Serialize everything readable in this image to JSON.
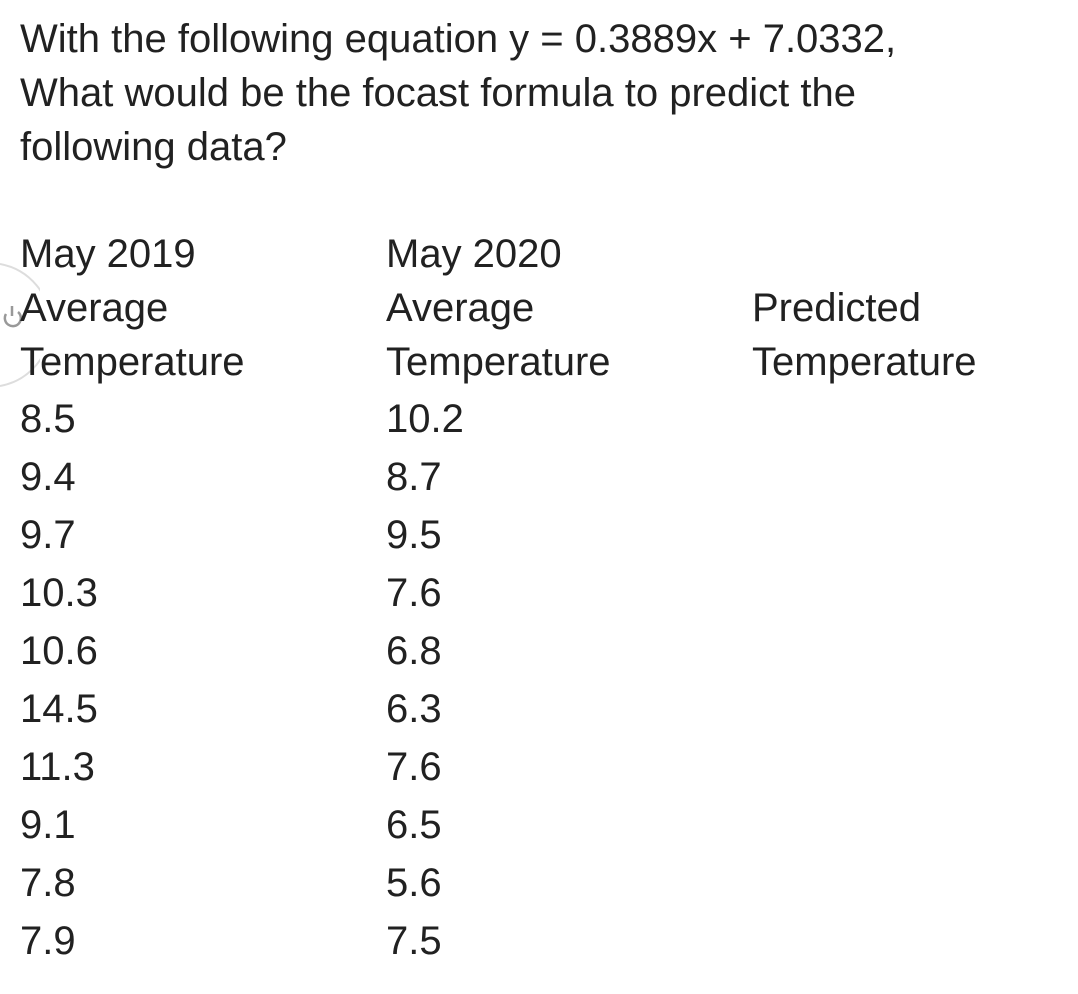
{
  "question": {
    "lines": [
      "With the following equation y = 0.3889x + 7.0332,",
      "What would be the focast formula to predict the",
      "following data?"
    ]
  },
  "table": {
    "headers": [
      [
        "May 2019",
        "Average",
        "Temperature"
      ],
      [
        "May 2020",
        "Average",
        "Temperature"
      ],
      [
        "Predicted",
        "Temperature"
      ]
    ],
    "rows": [
      [
        8.5,
        10.2
      ],
      [
        9.4,
        8.7
      ],
      [
        9.7,
        9.5
      ],
      [
        10.3,
        7.6
      ],
      [
        10.6,
        6.8
      ],
      [
        14.5,
        6.3
      ],
      [
        11.3,
        7.6
      ],
      [
        9.1,
        6.5
      ],
      [
        7.8,
        5.6
      ],
      [
        7.9,
        7.5
      ]
    ]
  }
}
